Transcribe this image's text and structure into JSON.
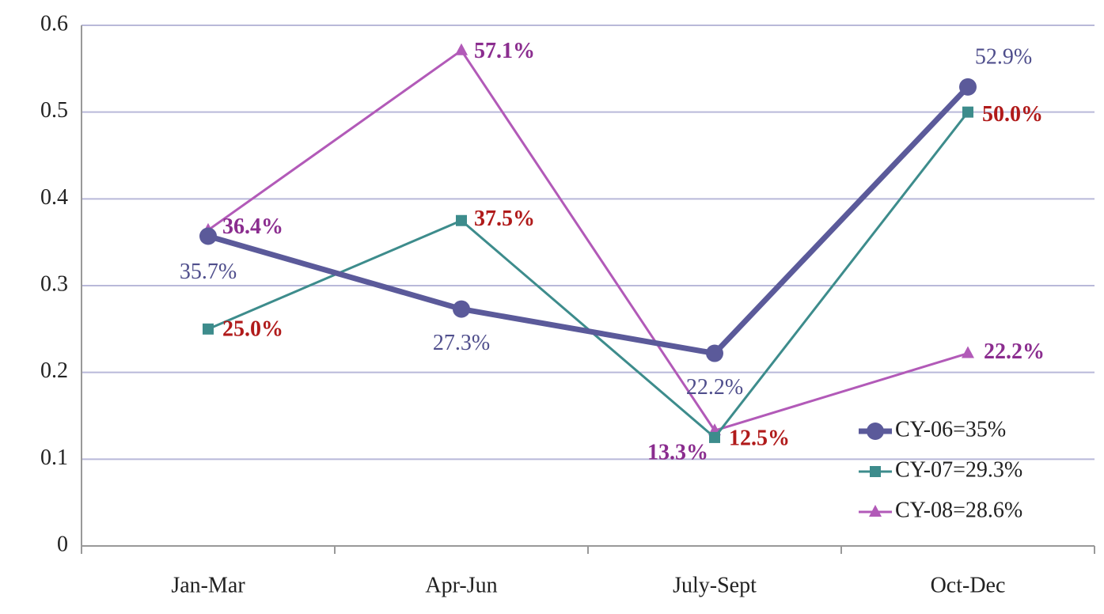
{
  "chart_data": {
    "type": "line",
    "categories": [
      "Jan-Mar",
      "Apr-Jun",
      "July-Sept",
      "Oct-Dec"
    ],
    "series": [
      {
        "name": "CY-06=35%",
        "color": "#5b5a9a",
        "label_color": "#4f4e8c",
        "marker": "circle",
        "values": [
          0.357,
          0.273,
          0.222,
          0.529
        ],
        "value_labels": [
          "35.7%",
          "27.3%",
          "22.2%",
          "52.9%"
        ]
      },
      {
        "name": "CY-07=29.3%",
        "color": "#3d8c8c",
        "label_color": "#b01a1a",
        "marker": "square",
        "values": [
          0.25,
          0.375,
          0.125,
          0.5
        ],
        "value_labels": [
          "25.0%",
          "37.5%",
          "12.5%",
          "50.0%"
        ]
      },
      {
        "name": "CY-08=28.6%",
        "color": "#b25ab8",
        "label_color": "#8b2d8f",
        "marker": "triangle",
        "values": [
          0.364,
          0.571,
          0.133,
          0.222
        ],
        "value_labels": [
          "36.4%",
          "57.1%",
          "13.3%",
          "22.2%"
        ]
      }
    ],
    "ylim": [
      0,
      0.6
    ],
    "yticks": [
      0,
      0.1,
      0.2,
      0.3,
      0.4,
      0.5,
      0.6
    ],
    "grid": true,
    "legend": "lower right"
  }
}
